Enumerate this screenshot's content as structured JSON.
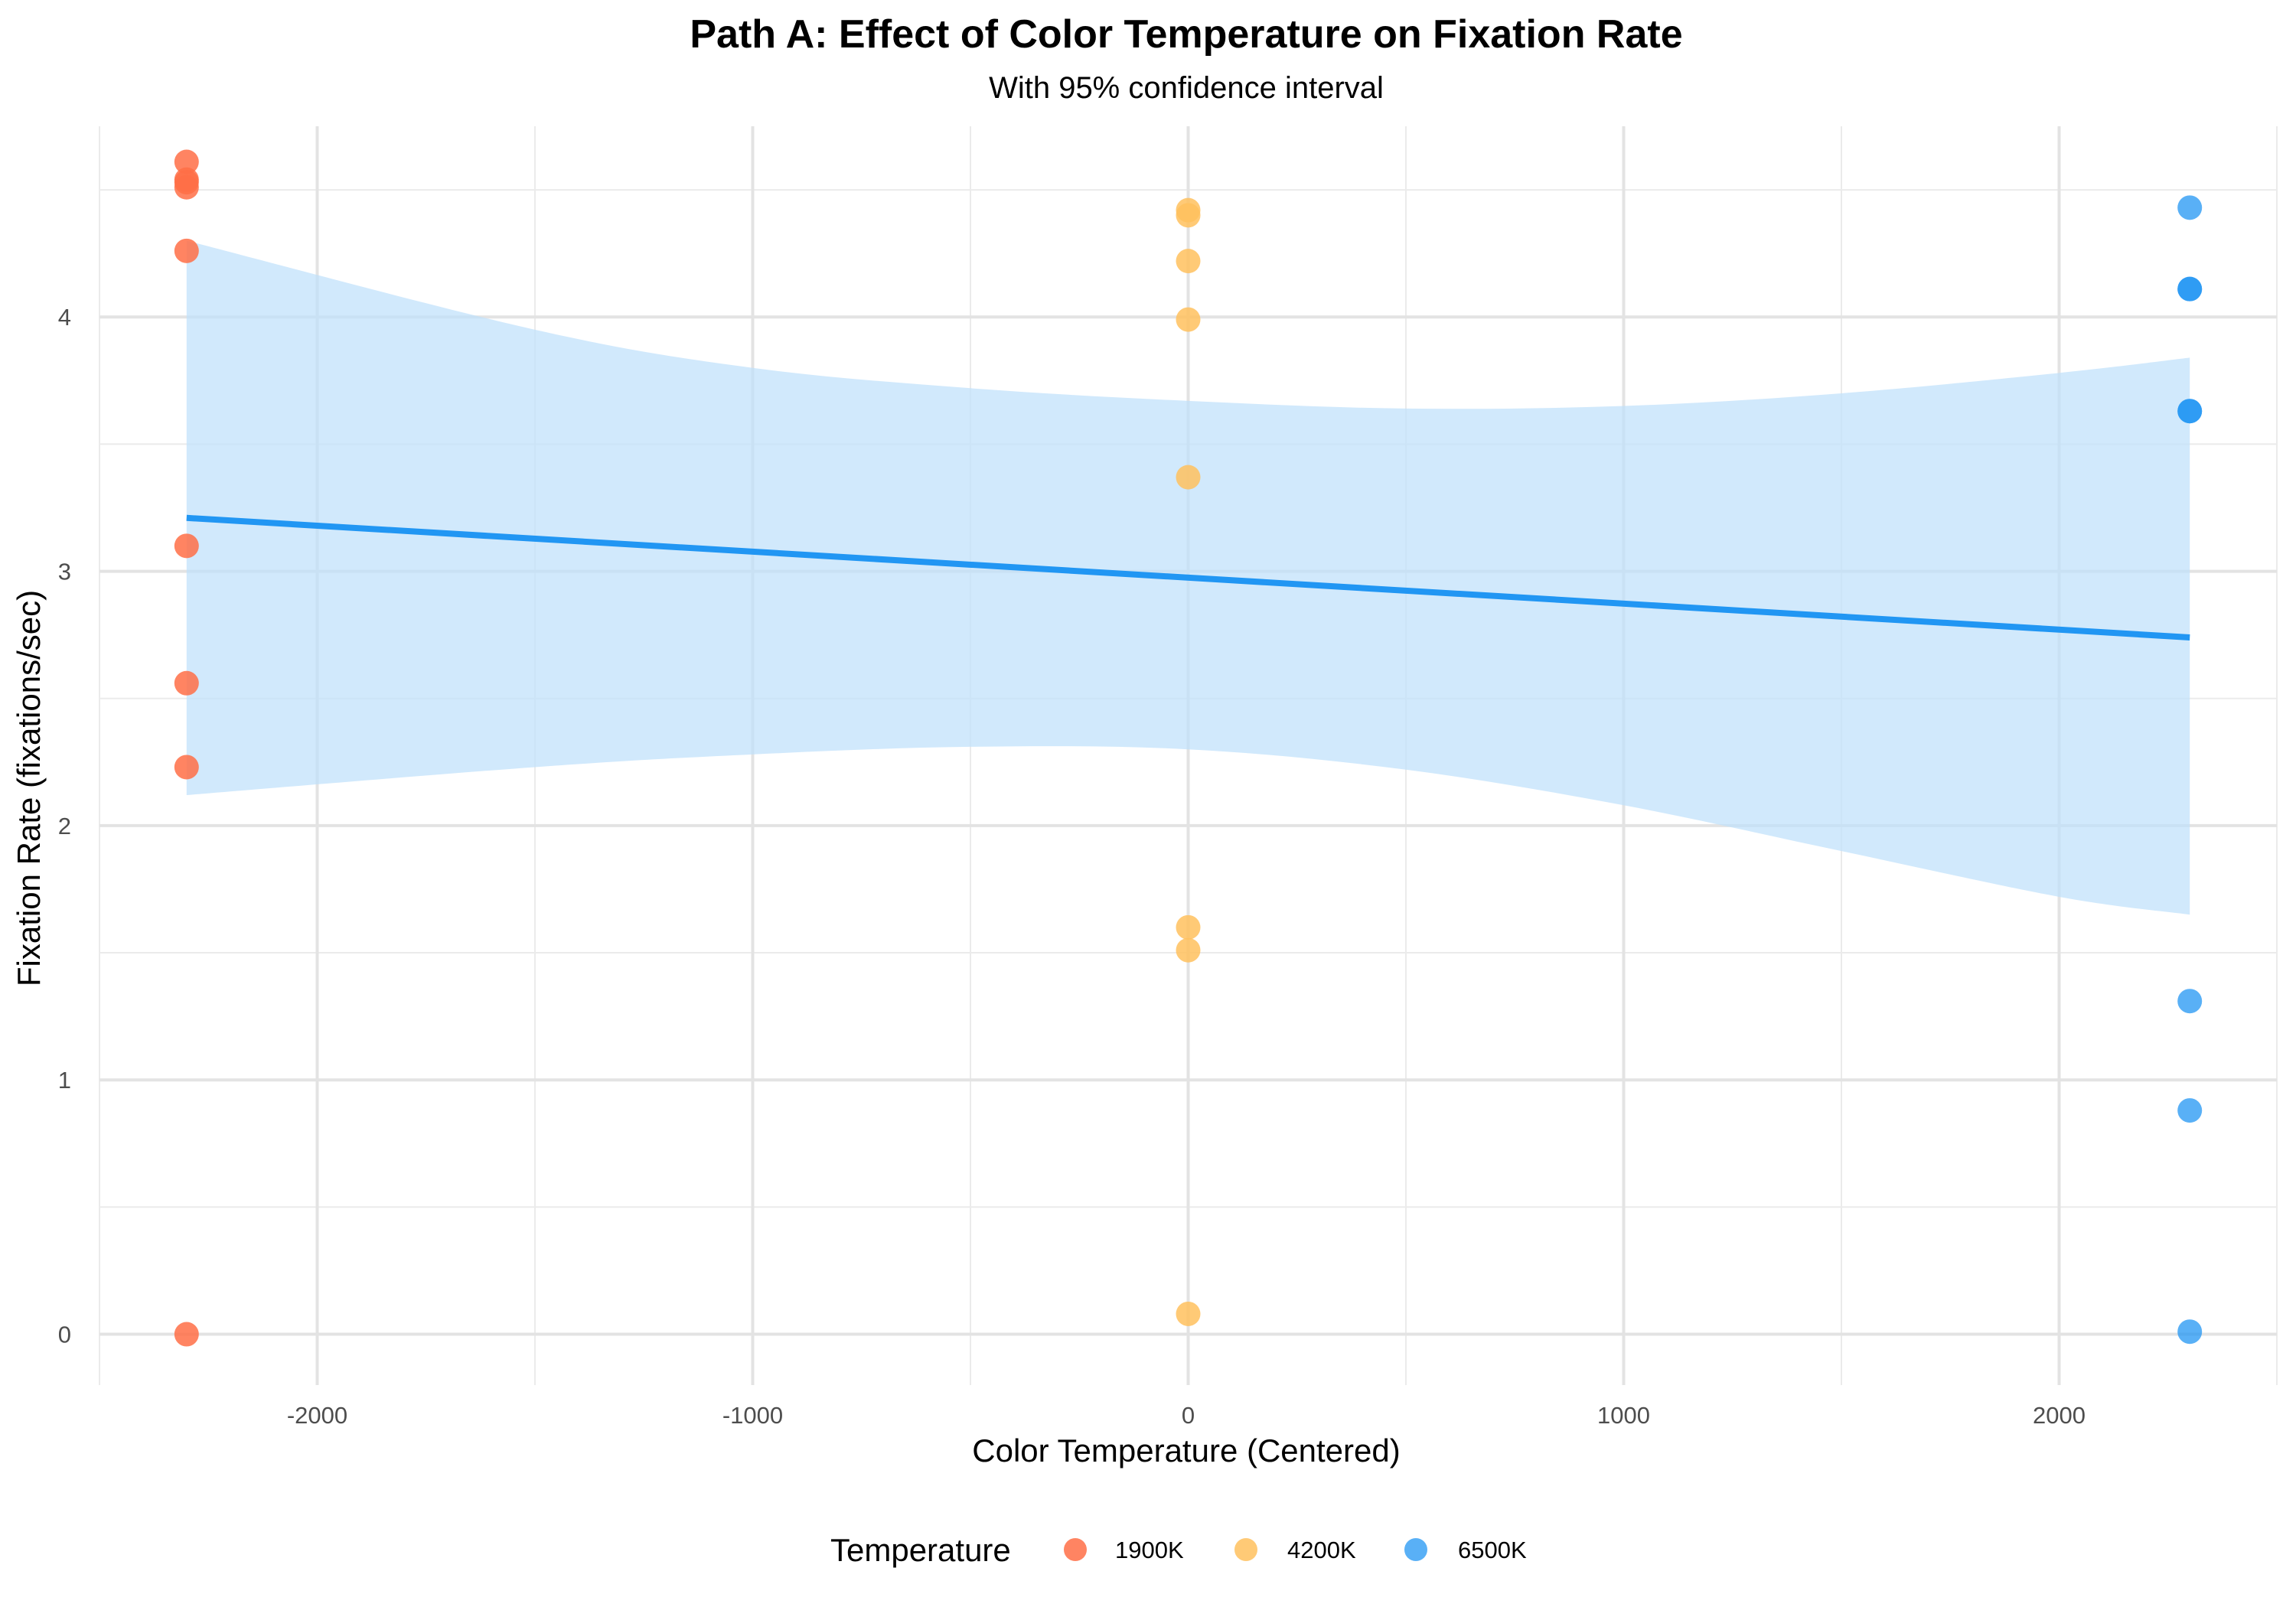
{
  "chart_data": {
    "type": "scatter",
    "title": "Path A: Effect of Color Temperature on Fixation Rate",
    "subtitle": "With 95% confidence interval",
    "xlabel": "Color Temperature (Centered)",
    "ylabel": "Fixation Rate (fixations/sec)",
    "xlim": [
      -2500,
      2500
    ],
    "ylim": [
      -0.2,
      4.75
    ],
    "x_ticks": [
      -2000,
      -1000,
      0,
      1000,
      2000
    ],
    "x_tick_labels": [
      "-2000",
      "-1000",
      "0",
      "1000",
      "2000"
    ],
    "y_ticks": [
      0,
      1,
      2,
      3,
      4
    ],
    "y_tick_labels": [
      "0",
      "1",
      "2",
      "3",
      "4"
    ],
    "grid": true,
    "legend": {
      "title": "Temperature",
      "position": "bottom",
      "entries": [
        {
          "label": "1900K",
          "color": "#FF6F47"
        },
        {
          "label": "4200K",
          "color": "#FFC15E"
        },
        {
          "label": "6500K",
          "color": "#2196F3"
        }
      ]
    },
    "series": [
      {
        "name": "1900K",
        "color": "#FF6F47",
        "x": [
          -2300,
          -2300,
          -2300,
          -2300,
          -2300,
          -2300,
          -2300,
          -2300,
          -2300
        ],
        "y": [
          4.61,
          4.54,
          4.53,
          4.51,
          4.26,
          3.1,
          2.56,
          2.23,
          0.0
        ]
      },
      {
        "name": "4200K",
        "color": "#FFC15E",
        "x": [
          0,
          0,
          0,
          0,
          0,
          0,
          0,
          0
        ],
        "y": [
          4.42,
          4.4,
          4.22,
          3.99,
          3.37,
          1.6,
          1.51,
          0.08
        ]
      },
      {
        "name": "6500K",
        "color": "#2196F3",
        "x": [
          2300,
          2300,
          2300,
          2300,
          2300,
          2300,
          2300,
          2300
        ],
        "y": [
          4.43,
          4.11,
          4.11,
          3.63,
          3.63,
          1.31,
          0.88,
          0.01
        ]
      }
    ],
    "fit_line": {
      "color": "#2196F3",
      "x": [
        -2300,
        2300
      ],
      "y": [
        3.21,
        2.74
      ]
    },
    "confidence_band": {
      "color": "#BFE1FB",
      "x": [
        -2300,
        -1500,
        -1000,
        -500,
        0,
        500,
        1000,
        1500,
        2000,
        2300
      ],
      "lower": [
        2.12,
        2.23,
        2.28,
        2.31,
        2.3,
        2.22,
        2.08,
        1.9,
        1.72,
        1.65
      ],
      "upper": [
        4.3,
        3.95,
        3.8,
        3.72,
        3.67,
        3.64,
        3.65,
        3.7,
        3.78,
        3.84
      ]
    }
  }
}
